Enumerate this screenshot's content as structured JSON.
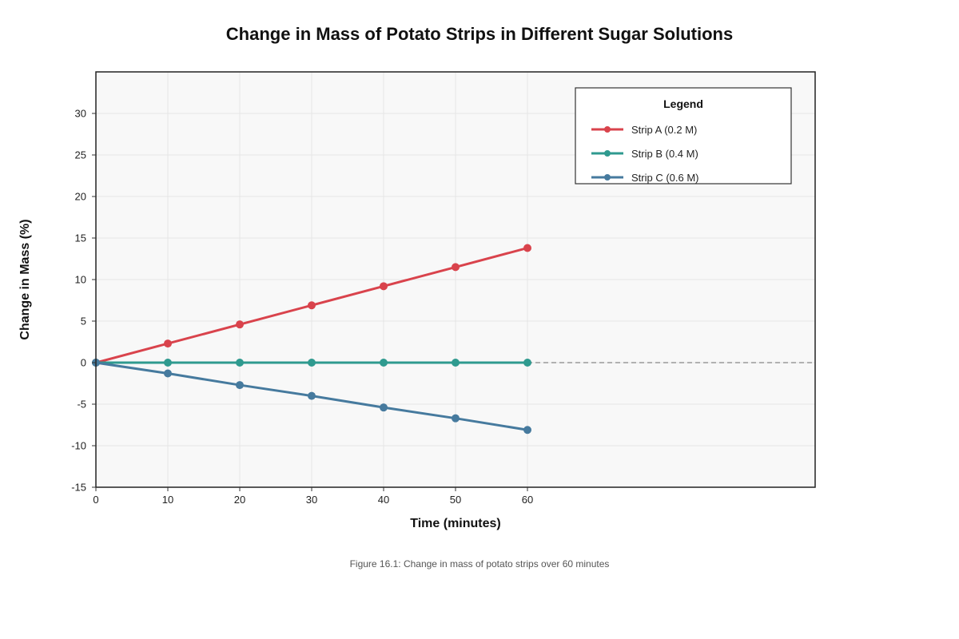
{
  "chart_data": {
    "type": "line",
    "title": "Change in Mass of Potato Strips in Different Sugar Solutions",
    "xlabel": "Time (minutes)",
    "ylabel": "Change in Mass (%)",
    "x": [
      0,
      10,
      20,
      30,
      40,
      50,
      60
    ],
    "x_ticks": [
      "0",
      "10",
      "20",
      "30",
      "40",
      "50",
      "60"
    ],
    "xlim": [
      0,
      100
    ],
    "ylim": [
      -15,
      35
    ],
    "y_ticks": [
      "-15",
      "-10",
      "-5",
      "0",
      "5",
      "10",
      "15",
      "20",
      "25",
      "30"
    ],
    "y_tick_values": [
      -15,
      -10,
      -5,
      0,
      5,
      10,
      15,
      20,
      25,
      30
    ],
    "grid": true,
    "legend": {
      "title": "Legend",
      "placement": "top-right"
    },
    "series": [
      {
        "name": "Strip A (0.2 M)",
        "color": "#d9434c",
        "values": [
          0,
          2.3,
          4.6,
          6.9,
          9.2,
          11.5,
          13.8
        ]
      },
      {
        "name": "Strip B (0.4 M)",
        "color": "#2f9a8f",
        "values": [
          0,
          0,
          0,
          0,
          0,
          0,
          0
        ]
      },
      {
        "name": "Strip C (0.6 M)",
        "color": "#467a9e",
        "values": [
          0,
          -1.3,
          -2.7,
          -4.0,
          -5.4,
          -6.7,
          -8.1
        ]
      }
    ],
    "reference_line": {
      "y": 0,
      "style": "dashed",
      "color": "#999999"
    },
    "caption": "Figure 16.1: Change in mass of potato strips over 60 minutes"
  }
}
